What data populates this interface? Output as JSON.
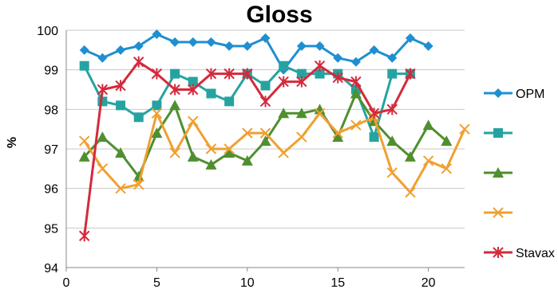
{
  "chart_data": {
    "type": "line",
    "title": "Gloss",
    "xlabel": "",
    "ylabel": "%",
    "xlim": [
      0,
      22
    ],
    "ylim": [
      94,
      100
    ],
    "x_ticks": [
      0,
      5,
      10,
      15,
      20
    ],
    "y_ticks": [
      94,
      95,
      96,
      97,
      98,
      99,
      100
    ],
    "grid": "horizontal",
    "legend_position": "right",
    "series": [
      {
        "name": "OPM",
        "color": "#1f8fd1",
        "marker": "diamond",
        "x": [
          1,
          2,
          3,
          4,
          5,
          6,
          7,
          8,
          9,
          10,
          11,
          12,
          13,
          14,
          15,
          16,
          17,
          18,
          19,
          20
        ],
        "y": [
          99.5,
          99.3,
          99.5,
          99.6,
          99.9,
          99.7,
          99.7,
          99.7,
          99.6,
          99.6,
          99.8,
          99.0,
          99.6,
          99.6,
          99.3,
          99.2,
          99.5,
          99.3,
          99.8,
          99.6
        ]
      },
      {
        "color": "#26a3a0",
        "marker": "square",
        "x": [
          1,
          2,
          3,
          4,
          5,
          6,
          7,
          8,
          9,
          10,
          11,
          12,
          13,
          14,
          15,
          16,
          17,
          18,
          19
        ],
        "y": [
          99.1,
          98.2,
          98.1,
          97.8,
          98.1,
          98.9,
          98.7,
          98.4,
          98.2,
          98.9,
          98.6,
          99.1,
          98.9,
          98.9,
          98.9,
          98.5,
          97.3,
          98.9,
          98.9
        ]
      },
      {
        "color": "#4f8f2f",
        "marker": "triangle",
        "x": [
          1,
          2,
          3,
          4,
          5,
          6,
          7,
          8,
          9,
          10,
          11,
          12,
          13,
          14,
          15,
          16,
          17,
          18,
          19,
          20,
          21
        ],
        "y": [
          96.8,
          97.3,
          96.9,
          96.3,
          97.4,
          98.1,
          96.8,
          96.6,
          96.9,
          96.7,
          97.2,
          97.9,
          97.9,
          98.0,
          97.3,
          98.4,
          97.7,
          97.2,
          96.8,
          97.6,
          97.2
        ]
      },
      {
        "color": "#f0a030",
        "marker": "x",
        "x": [
          1,
          2,
          3,
          4,
          5,
          6,
          7,
          8,
          9,
          10,
          11,
          12,
          13,
          14,
          15,
          16,
          17,
          18,
          19,
          20,
          21,
          22
        ],
        "y": [
          97.2,
          96.5,
          96.0,
          96.1,
          97.9,
          96.9,
          97.7,
          97.0,
          97.0,
          97.4,
          97.4,
          96.9,
          97.3,
          97.9,
          97.4,
          97.6,
          97.8,
          96.4,
          95.9,
          96.7,
          96.5,
          97.5
        ]
      },
      {
        "name": "Stavax",
        "color": "#d42a3c",
        "marker": "star",
        "x": [
          1,
          2,
          3,
          4,
          5,
          6,
          7,
          8,
          9,
          10,
          11,
          12,
          13,
          14,
          15,
          16,
          17,
          18,
          19
        ],
        "y": [
          94.8,
          98.5,
          98.6,
          99.2,
          98.9,
          98.5,
          98.5,
          98.9,
          98.9,
          98.9,
          98.2,
          98.7,
          98.7,
          99.1,
          98.8,
          98.7,
          97.9,
          98.0,
          98.9
        ]
      }
    ]
  }
}
